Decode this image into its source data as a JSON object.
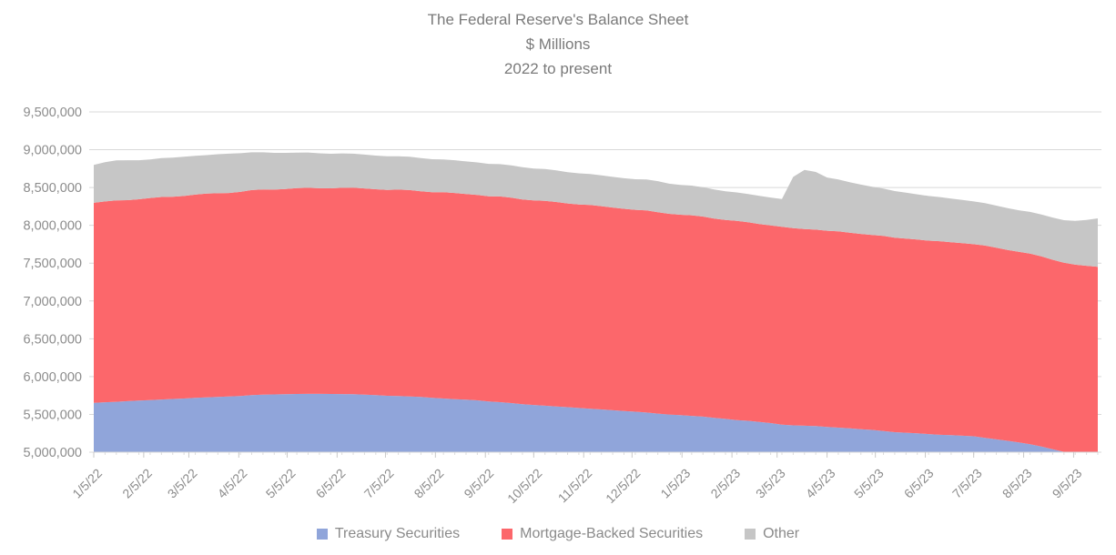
{
  "page": {
    "background": "#FFFFFF"
  },
  "chart_data": {
    "type": "area",
    "stacked": true,
    "title": "The Federal Reserve's Balance Sheet",
    "subtitle_units": "$ Millions",
    "subtitle_period": "2022 to present",
    "legend_position": "bottom",
    "grid": "horizontal",
    "colors": {
      "treasury": "#90A5DA",
      "mbs": "#FC676B",
      "other": "#C6C6C6",
      "gridline": "#D9D9D9",
      "axis_text": "#8C8C8C",
      "title_text": "#7A7A7A",
      "tick_major": "#C9C9C9",
      "tick_minor": "#DCDCDC"
    },
    "y_axis": {
      "min": 5000000,
      "max": 9500000,
      "step": 500000,
      "tick_labels": [
        "5,000,000",
        "5,500,000",
        "6,000,000",
        "6,500,000",
        "7,000,000",
        "7,500,000",
        "8,000,000",
        "8,500,000",
        "9,000,000",
        "9,500,000"
      ]
    },
    "x_axis": {
      "tick_labels": [
        "1/5/22",
        "2/5/22",
        "3/5/22",
        "4/5/22",
        "5/5/22",
        "6/5/22",
        "7/5/22",
        "8/5/22",
        "9/5/22",
        "10/5/22",
        "11/5/22",
        "12/5/22",
        "1/5/23",
        "2/5/23",
        "3/5/23",
        "4/5/23",
        "5/5/23",
        "6/5/23",
        "7/5/23",
        "8/5/23",
        "9/5/23"
      ]
    },
    "dates": [
      "1/5/22",
      "1/12/22",
      "1/19/22",
      "1/26/22",
      "2/2/22",
      "2/9/22",
      "2/16/22",
      "2/23/22",
      "3/2/22",
      "3/9/22",
      "3/16/22",
      "3/23/22",
      "3/30/22",
      "4/6/22",
      "4/13/22",
      "4/20/22",
      "4/27/22",
      "5/4/22",
      "5/11/22",
      "5/18/22",
      "5/25/22",
      "6/1/22",
      "6/8/22",
      "6/15/22",
      "6/22/22",
      "6/29/22",
      "7/6/22",
      "7/13/22",
      "7/20/22",
      "7/27/22",
      "8/3/22",
      "8/10/22",
      "8/17/22",
      "8/24/22",
      "8/31/22",
      "9/7/22",
      "9/14/22",
      "9/21/22",
      "9/28/22",
      "10/5/22",
      "10/12/22",
      "10/19/22",
      "10/26/22",
      "11/2/22",
      "11/9/22",
      "11/16/22",
      "11/23/22",
      "11/30/22",
      "12/7/22",
      "12/14/22",
      "12/21/22",
      "12/28/22",
      "1/4/23",
      "1/11/23",
      "1/18/23",
      "1/25/23",
      "2/1/23",
      "2/8/23",
      "2/15/23",
      "2/22/23",
      "3/1/23",
      "3/8/23",
      "3/15/23",
      "3/22/23",
      "3/29/23",
      "4/5/23",
      "4/12/23",
      "4/19/23",
      "4/26/23",
      "5/3/23",
      "5/10/23",
      "5/17/23",
      "5/24/23",
      "5/31/23",
      "6/7/23",
      "6/14/23",
      "6/21/23",
      "6/28/23",
      "7/5/23",
      "7/12/23",
      "7/19/23",
      "7/26/23",
      "8/2/23",
      "8/9/23",
      "8/16/23",
      "8/23/23",
      "8/30/23",
      "9/6/23",
      "9/13/23",
      "9/20/23"
    ],
    "series": [
      {
        "name": "Treasury Securities",
        "color": "#90A5DA",
        "values": [
          5652000,
          5660000,
          5667000,
          5675000,
          5683000,
          5690000,
          5697000,
          5704000,
          5710000,
          5718000,
          5725000,
          5732000,
          5738000,
          5744000,
          5756000,
          5760000,
          5764000,
          5768000,
          5770000,
          5771000,
          5771000,
          5770000,
          5769000,
          5766000,
          5762000,
          5755000,
          5746000,
          5742000,
          5738000,
          5730000,
          5718000,
          5710000,
          5702000,
          5694000,
          5686000,
          5671000,
          5662000,
          5650000,
          5635000,
          5625000,
          5615000,
          5605000,
          5595000,
          5585000,
          5575000,
          5565000,
          5555000,
          5545000,
          5535000,
          5525000,
          5510000,
          5498000,
          5490000,
          5480000,
          5470000,
          5455000,
          5440000,
          5425000,
          5415000,
          5400000,
          5385000,
          5365000,
          5355000,
          5350000,
          5345000,
          5335000,
          5325000,
          5315000,
          5305000,
          5295000,
          5280000,
          5265000,
          5258000,
          5250000,
          5240000,
          5230000,
          5225000,
          5218000,
          5210000,
          5190000,
          5170000,
          5150000,
          5130000,
          5105000,
          5075000,
          5040000,
          5005000,
          4985000,
          4975000,
          4967000
        ]
      },
      {
        "name": "Mortgage-Backed Securities",
        "color": "#FC676B",
        "values": [
          2646000,
          2656000,
          2662000,
          2658000,
          2662000,
          2672000,
          2678000,
          2674000,
          2678000,
          2688000,
          2694000,
          2692000,
          2690000,
          2698000,
          2710000,
          2714000,
          2708000,
          2712000,
          2722000,
          2726000,
          2720000,
          2719000,
          2728000,
          2732000,
          2726000,
          2722000,
          2722000,
          2730000,
          2729000,
          2721000,
          2720000,
          2727000,
          2726000,
          2719000,
          2716000,
          2714000,
          2720000,
          2716000,
          2708000,
          2705000,
          2710000,
          2704000,
          2694000,
          2690000,
          2694000,
          2688000,
          2680000,
          2674000,
          2670000,
          2673000,
          2664000,
          2654000,
          2650000,
          2653000,
          2646000,
          2635000,
          2630000,
          2633000,
          2626000,
          2618000,
          2614000,
          2616000,
          2608000,
          2602000,
          2598000,
          2594000,
          2596000,
          2588000,
          2582000,
          2578000,
          2580000,
          2572000,
          2566000,
          2562000,
          2558000,
          2560000,
          2552000,
          2546000,
          2540000,
          2542000,
          2534000,
          2525000,
          2520000,
          2522000,
          2514000,
          2505000,
          2500000,
          2495000,
          2490000,
          2485000
        ]
      },
      {
        "name": "Other",
        "color": "#C6C6C6",
        "values": [
          500000,
          520000,
          530000,
          528000,
          516000,
          510000,
          514000,
          518000,
          520000,
          514000,
          510000,
          516000,
          520000,
          512000,
          500000,
          492000,
          486000,
          478000,
          470000,
          466000,
          462000,
          458000,
          454000,
          450000,
          448000,
          446000,
          445000,
          442000,
          440000,
          438000,
          436000,
          434000,
          433000,
          432000,
          430000,
          428000,
          427000,
          426000,
          425000,
          422000,
          420000,
          418000,
          415000,
          413000,
          410000,
          408000,
          406000,
          404000,
          405000,
          408000,
          410000,
          399000,
          395000,
          392000,
          388000,
          384000,
          380000,
          377000,
          374000,
          371000,
          369000,
          367000,
          678000,
          782000,
          763000,
          703000,
          685000,
          668000,
          652000,
          638000,
          626000,
          616000,
          607000,
          598000,
          590000,
          584000,
          578000,
          572000,
          566000,
          561000,
          557000,
          553000,
          549000,
          551000,
          554000,
          558000,
          563000,
          580000,
          605000,
          640000
        ]
      }
    ]
  }
}
